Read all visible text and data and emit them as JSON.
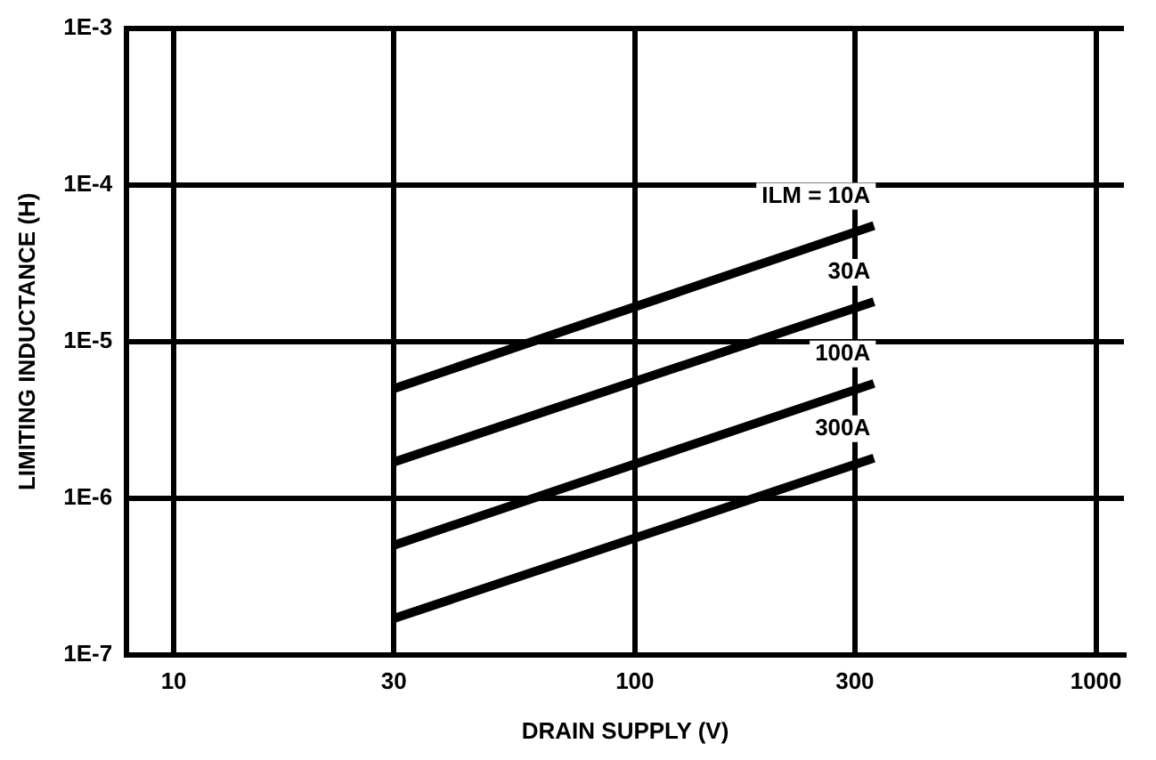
{
  "chart_data": {
    "type": "line",
    "xlabel": "DRAIN SUPPLY (V)",
    "ylabel": "LIMITING INDUCTANCE (H)",
    "log": "xy",
    "xlim": [
      7.9,
      1150
    ],
    "ylim": [
      1e-07,
      0.001
    ],
    "xticks": [
      10,
      30,
      100,
      300,
      1000
    ],
    "yticks": [
      {
        "value": 1e-07,
        "label": "1E-7"
      },
      {
        "value": 1e-06,
        "label": "1E-6"
      },
      {
        "value": 1e-05,
        "label": "1E-5"
      },
      {
        "value": 0.0001,
        "label": "1E-4"
      },
      {
        "value": 0.001,
        "label": "1E-3"
      }
    ],
    "x": [
      30,
      330
    ],
    "series": [
      {
        "name": "ILM = 10A",
        "color": "#000000",
        "values": [
          5e-06,
          5.5e-05
        ]
      },
      {
        "name": "30A",
        "color": "#000000",
        "values": [
          1.7e-06,
          1.8e-05
        ]
      },
      {
        "name": "100A",
        "color": "#000000",
        "values": [
          5e-07,
          5.4e-06
        ]
      },
      {
        "name": "300A",
        "color": "#000000",
        "values": [
          1.7e-07,
          1.8e-06
        ]
      }
    ],
    "grid": true,
    "legend": false,
    "marker": "none",
    "line_style": "solid"
  }
}
